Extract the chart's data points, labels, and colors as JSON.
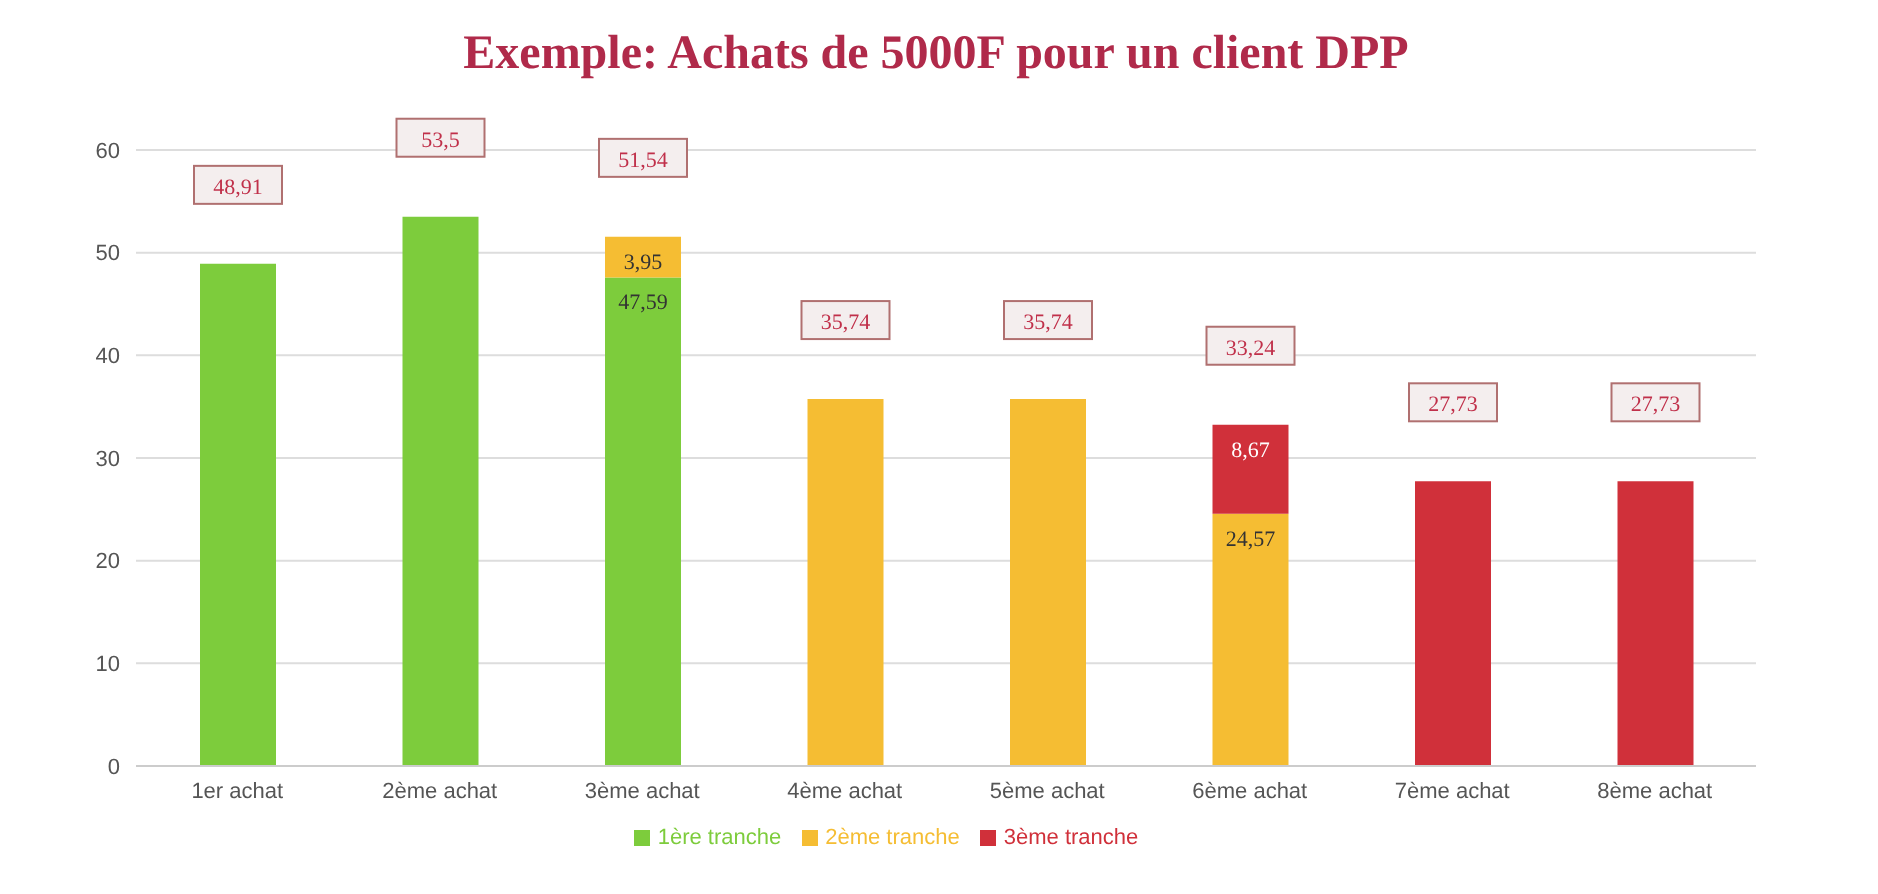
{
  "chart_data": {
    "type": "bar",
    "title": "Exemple: Achats de 5000F pour un client DPP",
    "categories": [
      "1er achat",
      "2ème achat",
      "3ème achat",
      "4ème achat",
      "5ème achat",
      "6ème achat",
      "7ème achat",
      "8ème achat"
    ],
    "stacked": true,
    "series": [
      {
        "name": "1ère tranche",
        "color": "#7dcc3c",
        "values": [
          48.91,
          53.5,
          47.59,
          null,
          null,
          null,
          null,
          null
        ],
        "value_labels": [
          null,
          null,
          "47,59",
          null,
          null,
          null,
          null,
          null
        ]
      },
      {
        "name": "2ème tranche",
        "color": "#f5bd33",
        "values": [
          null,
          null,
          3.95,
          35.74,
          35.74,
          24.57,
          null,
          null
        ],
        "value_labels": [
          null,
          null,
          "3,95",
          null,
          null,
          "24,57",
          null,
          null
        ]
      },
      {
        "name": "3ème tranche",
        "color": "#d0303a",
        "values": [
          null,
          null,
          null,
          null,
          null,
          8.67,
          27.73,
          27.73
        ],
        "value_labels": [
          null,
          null,
          null,
          null,
          null,
          "8,67",
          null,
          null
        ]
      }
    ],
    "totals": [
      "48,91",
      "53,5",
      "51,54",
      "35,74",
      "35,74",
      "33,24",
      "27,73",
      "27,73"
    ],
    "ylim": [
      0,
      60
    ],
    "yticks": [
      0,
      10,
      20,
      30,
      40,
      50,
      60
    ],
    "grid": "y",
    "legend": "bottom"
  }
}
